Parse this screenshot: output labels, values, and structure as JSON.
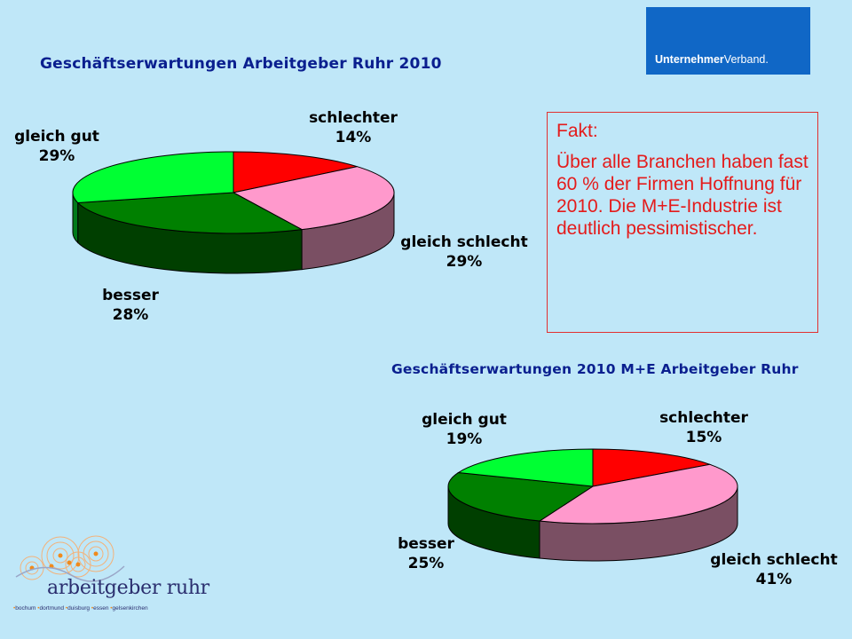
{
  "logo": {
    "bold": "Unternehmer",
    "regular": "Verband."
  },
  "fact": {
    "heading": "Fakt:",
    "body": "Über alle Branchen haben fast 60 % der Firmen Hoffnung für 2010. Die M+E-Industrie ist deutlich pessimistischer."
  },
  "brand": {
    "name": "arbeitgeber ruhr",
    "cities": [
      "bochum",
      "dortmund",
      "duisburg",
      "essen",
      "gelsenkirchen"
    ]
  },
  "colors": {
    "background": "#bfe7f8",
    "title": "#0a1f8f",
    "fact_text": "#e41b1b",
    "logo_bg": "#1067c6",
    "schlechter": "#ff0000",
    "gleich_schlecht": "#ff99cc",
    "besser": "#008000",
    "gleich_gut": "#00ff33"
  },
  "chart_data": [
    {
      "type": "pie",
      "title": "Geschäftserwartungen Arbeitgeber Ruhr 2010",
      "categories": [
        "schlechter",
        "gleich schlecht",
        "besser",
        "gleich gut"
      ],
      "values": [
        14,
        29,
        28,
        29
      ],
      "labels": [
        "14%",
        "29%",
        "28%",
        "29%"
      ],
      "legend": "none"
    },
    {
      "type": "pie",
      "title": "Geschäftserwartungen 2010 M+E Arbeitgeber Ruhr",
      "categories": [
        "schlechter",
        "gleich schlecht",
        "besser",
        "gleich gut"
      ],
      "values": [
        15,
        41,
        25,
        19
      ],
      "labels": [
        "15%",
        "41%",
        "25%",
        "19%"
      ],
      "legend": "none"
    }
  ]
}
